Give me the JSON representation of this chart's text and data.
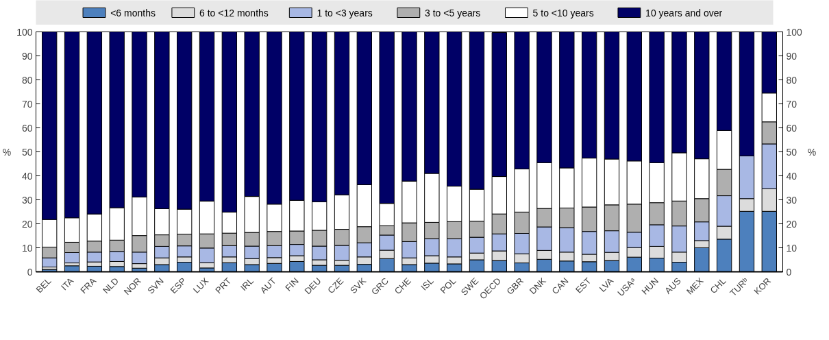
{
  "chart_data": {
    "type": "bar",
    "stacked": true,
    "ylabel": "%",
    "y2label": "%",
    "legend": "top",
    "grid": false,
    "categories": [
      "BEL",
      "ITA",
      "FRA",
      "NLD",
      "NOR",
      "SVN",
      "ESP",
      "LUX",
      "PRT",
      "IRL",
      "AUT",
      "FIN",
      "DEU",
      "CZE",
      "SVK",
      "GRC",
      "CHE",
      "ISL",
      "POL",
      "SWE",
      "OECD",
      "GBR",
      "DNK",
      "CAN",
      "EST",
      "LVA",
      "USAᵃ",
      "HUN",
      "AUS",
      "MEX",
      "CHL",
      "TURᵇ",
      "KOR"
    ],
    "ylim": [
      0,
      100
    ],
    "yticks": [
      0,
      10,
      20,
      30,
      40,
      50,
      60,
      70,
      80,
      90,
      100
    ],
    "y2lim": [
      0,
      100
    ],
    "y2ticks": [
      0,
      10,
      20,
      30,
      40,
      50,
      60,
      70,
      80,
      90,
      100
    ],
    "series": [
      {
        "name": "<6 months",
        "color": "#4d80bd",
        "values": [
          1.0,
          2.5,
          2.3,
          2.2,
          1.5,
          3.0,
          4.0,
          1.6,
          3.8,
          3.0,
          3.5,
          4.3,
          2.7,
          2.7,
          3.1,
          5.5,
          3.0,
          3.6,
          3.3,
          5.0,
          4.7,
          3.7,
          5.2,
          4.5,
          4.2,
          4.7,
          6.1,
          5.7,
          4.0,
          10.0,
          13.6,
          25.2,
          25.2
        ]
      },
      {
        "name": "6 to <12 months",
        "color": "#dcdcdc",
        "values": [
          1.0,
          1.2,
          1.8,
          2.1,
          1.9,
          2.8,
          2.2,
          2.2,
          2.4,
          2.5,
          2.4,
          2.4,
          2.3,
          2.1,
          3.1,
          3.5,
          2.8,
          3.1,
          2.9,
          2.8,
          4.0,
          3.8,
          3.7,
          3.7,
          3.1,
          3.4,
          4.0,
          4.9,
          4.2,
          3.0,
          5.4,
          5.3,
          9.4
        ]
      },
      {
        "name": "1 to <3 years",
        "color": "#a8b8e4",
        "values": [
          3.8,
          4.3,
          4.1,
          4.2,
          4.8,
          4.8,
          4.6,
          6.1,
          4.7,
          5.2,
          5.0,
          4.7,
          5.7,
          6.2,
          5.9,
          6.3,
          6.8,
          7.1,
          7.6,
          6.6,
          7.1,
          8.5,
          9.8,
          10.2,
          9.5,
          9.0,
          6.4,
          9.0,
          10.9,
          7.8,
          12.7,
          17.8,
          18.7
        ]
      },
      {
        "name": "3 to <5 years",
        "color": "#afafaf",
        "values": [
          4.5,
          4.3,
          4.6,
          4.7,
          6.9,
          4.8,
          4.9,
          5.9,
          5.2,
          5.7,
          5.9,
          5.6,
          6.6,
          6.7,
          6.7,
          3.9,
          7.8,
          6.8,
          7.1,
          6.7,
          8.3,
          8.9,
          7.7,
          8.2,
          10.2,
          10.8,
          11.7,
          9.2,
          10.4,
          9.7,
          11.0,
          null,
          9.2
        ]
      },
      {
        "name": "5 to <10 years",
        "color": "#ffffff",
        "values": [
          11.5,
          10.2,
          11.3,
          13.5,
          16.1,
          10.9,
          10.4,
          13.7,
          8.8,
          15.0,
          11.4,
          12.8,
          11.9,
          14.4,
          17.5,
          9.3,
          17.4,
          20.4,
          14.8,
          13.3,
          15.6,
          18.0,
          19.1,
          16.7,
          20.4,
          19.1,
          18.0,
          16.7,
          20.1,
          16.6,
          16.2,
          null,
          12.0
        ]
      },
      {
        "name": "10 years and over",
        "color": "#000066",
        "values": [
          78.2,
          77.5,
          75.9,
          73.3,
          68.8,
          73.7,
          73.9,
          70.5,
          75.1,
          68.6,
          71.8,
          70.2,
          70.8,
          67.9,
          63.7,
          71.5,
          62.2,
          59.0,
          64.3,
          65.6,
          60.0,
          57.1,
          54.5,
          56.7,
          52.6,
          53.0,
          53.8,
          54.5,
          50.4,
          52.9,
          41.1,
          51.7,
          25.5
        ]
      }
    ]
  }
}
